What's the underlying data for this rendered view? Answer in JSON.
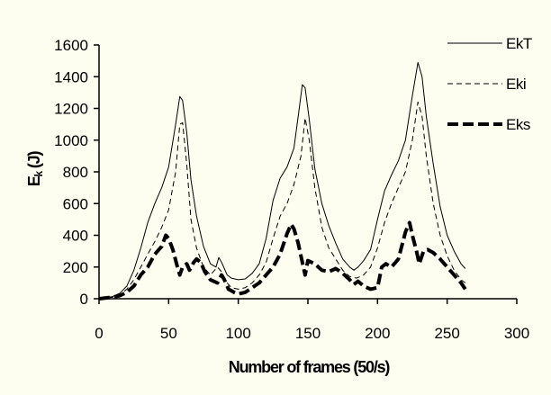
{
  "chart_data": {
    "type": "line",
    "title": "",
    "xlabel": "Number of frames (50/s)",
    "ylabel_main": "E",
    "ylabel_sub": "k",
    "ylabel_tail": " (J)",
    "xlim": [
      0,
      300
    ],
    "ylim": [
      0,
      1600
    ],
    "xticks": [
      0,
      50,
      100,
      150,
      200,
      250,
      300
    ],
    "yticks": [
      0,
      200,
      400,
      600,
      800,
      1000,
      1200,
      1400,
      1600
    ],
    "grid": false,
    "legend_position": "top-right",
    "series": [
      {
        "name": "EkT",
        "style": "thin-solid",
        "color": "#000000",
        "points": [
          [
            0,
            0
          ],
          [
            5,
            5
          ],
          [
            10,
            15
          ],
          [
            15,
            35
          ],
          [
            20,
            80
          ],
          [
            25,
            180
          ],
          [
            30,
            320
          ],
          [
            35,
            480
          ],
          [
            40,
            600
          ],
          [
            45,
            700
          ],
          [
            50,
            830
          ],
          [
            55,
            1100
          ],
          [
            58,
            1275
          ],
          [
            60,
            1250
          ],
          [
            63,
            1050
          ],
          [
            66,
            750
          ],
          [
            70,
            520
          ],
          [
            75,
            330
          ],
          [
            80,
            220
          ],
          [
            84,
            200
          ],
          [
            86,
            260
          ],
          [
            88,
            230
          ],
          [
            92,
            150
          ],
          [
            95,
            130
          ],
          [
            100,
            120
          ],
          [
            105,
            125
          ],
          [
            110,
            160
          ],
          [
            115,
            220
          ],
          [
            120,
            380
          ],
          [
            125,
            620
          ],
          [
            130,
            760
          ],
          [
            135,
            830
          ],
          [
            140,
            950
          ],
          [
            143,
            1150
          ],
          [
            146,
            1350
          ],
          [
            148,
            1330
          ],
          [
            151,
            1130
          ],
          [
            155,
            820
          ],
          [
            160,
            600
          ],
          [
            165,
            460
          ],
          [
            170,
            350
          ],
          [
            175,
            250
          ],
          [
            180,
            200
          ],
          [
            183,
            180
          ],
          [
            186,
            200
          ],
          [
            190,
            240
          ],
          [
            195,
            310
          ],
          [
            200,
            500
          ],
          [
            205,
            680
          ],
          [
            210,
            780
          ],
          [
            215,
            870
          ],
          [
            220,
            1000
          ],
          [
            225,
            1280
          ],
          [
            229,
            1490
          ],
          [
            232,
            1400
          ],
          [
            235,
            1150
          ],
          [
            240,
            850
          ],
          [
            245,
            580
          ],
          [
            250,
            400
          ],
          [
            255,
            300
          ],
          [
            260,
            220
          ],
          [
            263,
            190
          ]
        ]
      },
      {
        "name": "Eki",
        "style": "thin-dashed",
        "color": "#000000",
        "points": [
          [
            0,
            0
          ],
          [
            5,
            3
          ],
          [
            10,
            10
          ],
          [
            15,
            25
          ],
          [
            20,
            60
          ],
          [
            25,
            120
          ],
          [
            30,
            200
          ],
          [
            35,
            280
          ],
          [
            40,
            360
          ],
          [
            45,
            450
          ],
          [
            50,
            560
          ],
          [
            55,
            800
          ],
          [
            58,
            1100
          ],
          [
            60,
            1110
          ],
          [
            63,
            850
          ],
          [
            66,
            500
          ],
          [
            70,
            320
          ],
          [
            75,
            200
          ],
          [
            80,
            150
          ],
          [
            85,
            200
          ],
          [
            88,
            170
          ],
          [
            92,
            100
          ],
          [
            95,
            70
          ],
          [
            100,
            60
          ],
          [
            105,
            70
          ],
          [
            110,
            100
          ],
          [
            115,
            150
          ],
          [
            120,
            230
          ],
          [
            125,
            380
          ],
          [
            130,
            520
          ],
          [
            135,
            600
          ],
          [
            140,
            720
          ],
          [
            145,
            900
          ],
          [
            148,
            1140
          ],
          [
            151,
            1000
          ],
          [
            155,
            700
          ],
          [
            160,
            450
          ],
          [
            165,
            320
          ],
          [
            170,
            250
          ],
          [
            175,
            180
          ],
          [
            180,
            140
          ],
          [
            185,
            130
          ],
          [
            190,
            150
          ],
          [
            195,
            200
          ],
          [
            200,
            320
          ],
          [
            205,
            480
          ],
          [
            210,
            600
          ],
          [
            215,
            700
          ],
          [
            220,
            800
          ],
          [
            225,
            1000
          ],
          [
            229,
            1240
          ],
          [
            232,
            1150
          ],
          [
            235,
            900
          ],
          [
            240,
            600
          ],
          [
            245,
            400
          ],
          [
            250,
            270
          ],
          [
            255,
            180
          ],
          [
            260,
            120
          ],
          [
            263,
            100
          ]
        ]
      },
      {
        "name": "Eks",
        "style": "thick-dashed",
        "color": "#000000",
        "points": [
          [
            0,
            0
          ],
          [
            5,
            5
          ],
          [
            10,
            10
          ],
          [
            15,
            20
          ],
          [
            20,
            40
          ],
          [
            25,
            80
          ],
          [
            30,
            150
          ],
          [
            35,
            200
          ],
          [
            40,
            280
          ],
          [
            45,
            330
          ],
          [
            48,
            400
          ],
          [
            50,
            380
          ],
          [
            53,
            310
          ],
          [
            56,
            210
          ],
          [
            58,
            150
          ],
          [
            60,
            200
          ],
          [
            63,
            220
          ],
          [
            65,
            180
          ],
          [
            68,
            230
          ],
          [
            70,
            250
          ],
          [
            73,
            230
          ],
          [
            76,
            170
          ],
          [
            80,
            120
          ],
          [
            85,
            100
          ],
          [
            88,
            150
          ],
          [
            90,
            120
          ],
          [
            93,
            60
          ],
          [
            97,
            40
          ],
          [
            100,
            30
          ],
          [
            105,
            40
          ],
          [
            110,
            70
          ],
          [
            115,
            100
          ],
          [
            120,
            150
          ],
          [
            125,
            200
          ],
          [
            130,
            280
          ],
          [
            135,
            410
          ],
          [
            138,
            470
          ],
          [
            140,
            440
          ],
          [
            143,
            350
          ],
          [
            146,
            230
          ],
          [
            148,
            150
          ],
          [
            150,
            240
          ],
          [
            155,
            220
          ],
          [
            160,
            180
          ],
          [
            165,
            170
          ],
          [
            170,
            190
          ],
          [
            175,
            160
          ],
          [
            180,
            120
          ],
          [
            183,
            90
          ],
          [
            186,
            110
          ],
          [
            190,
            80
          ],
          [
            195,
            60
          ],
          [
            200,
            70
          ],
          [
            203,
            200
          ],
          [
            206,
            220
          ],
          [
            210,
            200
          ],
          [
            215,
            250
          ],
          [
            220,
            420
          ],
          [
            223,
            480
          ],
          [
            225,
            400
          ],
          [
            228,
            300
          ],
          [
            230,
            220
          ],
          [
            233,
            300
          ],
          [
            236,
            310
          ],
          [
            240,
            290
          ],
          [
            245,
            250
          ],
          [
            250,
            200
          ],
          [
            255,
            150
          ],
          [
            260,
            100
          ],
          [
            263,
            60
          ]
        ]
      }
    ]
  }
}
